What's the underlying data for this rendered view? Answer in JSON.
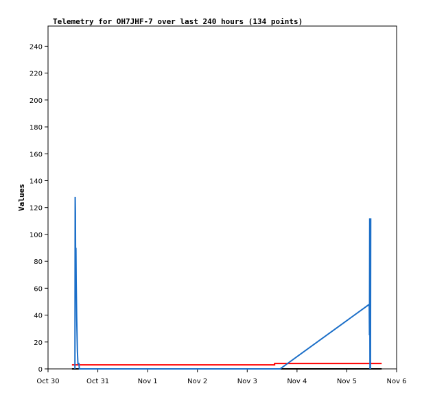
{
  "chart_data": {
    "type": "line",
    "title": "Telemetry for OH7JHF-7 over last 240 hours (134 points)",
    "y_label": "Values",
    "xlim": [
      0,
      7
    ],
    "xticks": [
      {
        "value": 0,
        "label": "Oct 30"
      },
      {
        "value": 1,
        "label": "Oct 31"
      },
      {
        "value": 2,
        "label": "Nov 1"
      },
      {
        "value": 3,
        "label": "Nov 2"
      },
      {
        "value": 4,
        "label": "Nov 3"
      },
      {
        "value": 5,
        "label": "Nov 4"
      },
      {
        "value": 6,
        "label": "Nov 5"
      },
      {
        "value": 7,
        "label": "Nov 6"
      }
    ],
    "ylim": [
      0,
      255
    ],
    "yticks": [
      0,
      20,
      40,
      60,
      80,
      100,
      120,
      140,
      160,
      180,
      200,
      220,
      240
    ],
    "series": [
      {
        "color": "#000000",
        "x": [
          0.48,
          6.7
        ],
        "values": [
          0,
          0
        ]
      },
      {
        "color": "#ff0000",
        "x": [
          0.48,
          4.55,
          4.55,
          6.7
        ],
        "values": [
          3,
          3,
          4,
          4
        ]
      },
      {
        "color": "#1c6fc8",
        "x": [
          0.54,
          0.545,
          0.55,
          0.555,
          0.56,
          0.565,
          0.575,
          0.59,
          0.6,
          0.62,
          0.63,
          4.66,
          6.45,
          6.455,
          6.46,
          6.465,
          6.47,
          6.475,
          6.48
        ],
        "values": [
          0,
          128,
          116,
          64,
          90,
          65,
          39,
          13,
          4,
          4,
          0,
          0,
          48,
          25,
          112,
          0,
          112,
          0,
          112
        ]
      }
    ]
  }
}
